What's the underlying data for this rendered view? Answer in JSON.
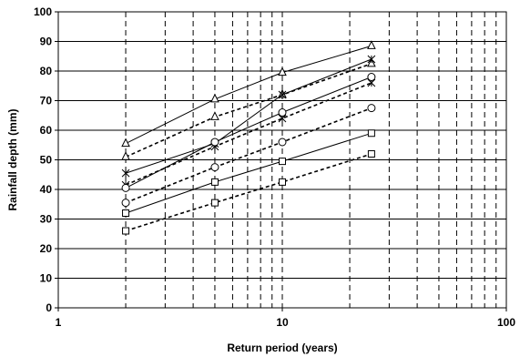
{
  "chart_data": {
    "type": "line",
    "title": "",
    "xlabel": "Return period (years)",
    "ylabel": "Rainfall depth (mm)",
    "x_scale": "log",
    "xlim": [
      1,
      100
    ],
    "ylim": [
      0,
      100
    ],
    "x_ticks": [
      1,
      10,
      100
    ],
    "x_tick_labels": [
      "1",
      "10",
      "100"
    ],
    "x_minor_gridlines": [
      2,
      3,
      4,
      5,
      6,
      7,
      8,
      9,
      20,
      30,
      40,
      50,
      60,
      70,
      80,
      90
    ],
    "y_ticks": [
      0,
      10,
      20,
      30,
      40,
      50,
      60,
      70,
      80,
      90,
      100
    ],
    "y_tick_labels": [
      "0",
      "10",
      "20",
      "30",
      "40",
      "50",
      "60",
      "70",
      "80",
      "90",
      "100"
    ],
    "grid": {
      "horizontal": "solid",
      "vertical": "dashed"
    },
    "legend": "none",
    "x": [
      2,
      5,
      10,
      25
    ],
    "series": [
      {
        "marker": "triangle",
        "line": "solid",
        "values": [
          55.5,
          70.5,
          79.5,
          88.5
        ]
      },
      {
        "marker": "triangle",
        "line": "dashed",
        "values": [
          51,
          64.5,
          72,
          82.5
        ]
      },
      {
        "marker": "star",
        "line": "solid",
        "values": [
          45.5,
          55.5,
          72,
          84
        ]
      },
      {
        "marker": "star",
        "line": "dashed",
        "values": [
          41.5,
          54.5,
          64,
          76
        ]
      },
      {
        "marker": "circle",
        "line": "solid",
        "values": [
          40.5,
          56,
          66,
          78
        ]
      },
      {
        "marker": "circle",
        "line": "dashed",
        "values": [
          35.5,
          47.5,
          56,
          67.5
        ]
      },
      {
        "marker": "square",
        "line": "solid",
        "values": [
          32,
          42.5,
          49.5,
          59
        ]
      },
      {
        "marker": "square",
        "line": "dashed",
        "values": [
          26,
          35.5,
          42.5,
          52
        ]
      }
    ]
  }
}
